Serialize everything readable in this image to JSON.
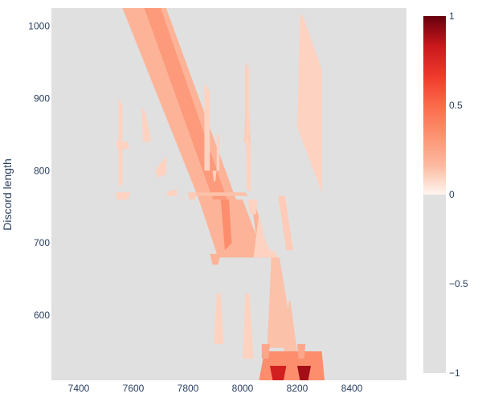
{
  "chart_data": {
    "type": "heatmap",
    "title": "",
    "xlabel": "",
    "ylabel": "Discord length",
    "xlim": [
      7300,
      8600
    ],
    "ylim": [
      510,
      1025
    ],
    "x_ticks": [
      7400,
      7600,
      7800,
      8000,
      8200,
      8400
    ],
    "y_ticks": [
      600,
      700,
      800,
      900,
      1000
    ],
    "background_value": -1,
    "colorscale": {
      "range": [
        -1,
        1
      ],
      "ticks": [
        1,
        0.5,
        0,
        -0.5,
        -1
      ],
      "tick_labels": [
        "1",
        "0.5",
        "0",
        "−0.5",
        "−1"
      ],
      "negative_color": "#e0e0e0",
      "positive_stops": [
        "#fff5f0",
        "#fcbba1",
        "#fc9272",
        "#fb6a4a",
        "#ef3b2c",
        "#cb181d",
        "#67000d"
      ]
    },
    "regions": [
      {
        "polygon": [
          [
            7560,
            1025
          ],
          [
            7720,
            1025
          ],
          [
            8015,
            720
          ],
          [
            7900,
            700
          ],
          [
            7830,
            770
          ]
        ],
        "value": 0.2
      },
      {
        "polygon": [
          [
            7640,
            1025
          ],
          [
            7700,
            1025
          ],
          [
            7980,
            720
          ],
          [
            7930,
            720
          ]
        ],
        "value": 0.3
      },
      {
        "polygon": [
          [
            7820,
            770
          ],
          [
            8010,
            770
          ],
          [
            8020,
            765
          ],
          [
            7830,
            765
          ]
        ],
        "value": 0.15
      },
      {
        "polygon": [
          [
            7840,
            760
          ],
          [
            8000,
            760
          ],
          [
            8080,
            680
          ],
          [
            7910,
            680
          ]
        ],
        "value": 0.2
      },
      {
        "polygon": [
          [
            7920,
            760
          ],
          [
            7950,
            760
          ],
          [
            7960,
            700
          ],
          [
            7935,
            690
          ]
        ],
        "value": 0.35
      },
      {
        "polygon": [
          [
            8035,
            750
          ],
          [
            8050,
            750
          ],
          [
            8100,
            680
          ],
          [
            8060,
            680
          ]
        ],
        "value": 0.2
      },
      {
        "polygon": [
          [
            7880,
            685
          ],
          [
            7920,
            685
          ],
          [
            7910,
            670
          ],
          [
            7890,
            670
          ]
        ],
        "value": 0.2
      },
      {
        "polygon": [
          [
            7545,
            900
          ],
          [
            7560,
            890
          ],
          [
            7560,
            780
          ],
          [
            7545,
            780
          ]
        ],
        "value": 0.1
      },
      {
        "polygon": [
          [
            7535,
            770
          ],
          [
            7590,
            770
          ],
          [
            7580,
            760
          ],
          [
            7540,
            760
          ]
        ],
        "value": 0.1
      },
      {
        "polygon": [
          [
            7630,
            890
          ],
          [
            7645,
            880
          ],
          [
            7665,
            840
          ],
          [
            7635,
            840
          ]
        ],
        "value": 0.1
      },
      {
        "polygon": [
          [
            7680,
            800
          ],
          [
            7720,
            820
          ],
          [
            7720,
            795
          ],
          [
            7690,
            790
          ]
        ],
        "value": 0.1
      },
      {
        "polygon": [
          [
            7720,
            770
          ],
          [
            7760,
            775
          ],
          [
            7760,
            765
          ],
          [
            7725,
            765
          ]
        ],
        "value": 0.1
      },
      {
        "polygon": [
          [
            7860,
            920
          ],
          [
            7880,
            910
          ],
          [
            7880,
            800
          ],
          [
            7860,
            800
          ]
        ],
        "value": 0.1
      },
      {
        "polygon": [
          [
            7905,
            850
          ],
          [
            7915,
            850
          ],
          [
            7915,
            800
          ],
          [
            7905,
            800
          ]
        ],
        "value": 0.1
      },
      {
        "polygon": [
          [
            7890,
            800
          ],
          [
            7905,
            800
          ],
          [
            7900,
            785
          ],
          [
            7895,
            785
          ]
        ],
        "value": 0.1
      },
      {
        "polygon": [
          [
            8010,
            950
          ],
          [
            8020,
            940
          ],
          [
            8030,
            830
          ],
          [
            8005,
            840
          ],
          [
            8010,
            875
          ]
        ],
        "value": 0.12
      },
      {
        "polygon": [
          [
            8015,
            830
          ],
          [
            8030,
            830
          ],
          [
            8030,
            770
          ],
          [
            8015,
            775
          ]
        ],
        "value": 0.1
      },
      {
        "polygon": [
          [
            8010,
            850
          ],
          [
            8030,
            835
          ],
          [
            8030,
            775
          ],
          [
            8015,
            790
          ]
        ],
        "value": 0.1
      },
      {
        "polygon": [
          [
            8015,
            950
          ],
          [
            8025,
            940
          ],
          [
            8025,
            850
          ],
          [
            8015,
            850
          ]
        ],
        "value": 0.1
      },
      {
        "polygon": [
          [
            8210,
            1015
          ],
          [
            8220,
            1015
          ],
          [
            8290,
            940
          ],
          [
            8290,
            770
          ],
          [
            8200,
            860
          ]
        ],
        "value": 0.1
      },
      {
        "polygon": [
          [
            8130,
            765
          ],
          [
            8155,
            765
          ],
          [
            8185,
            690
          ],
          [
            8160,
            690
          ]
        ],
        "value": 0.12
      },
      {
        "polygon": [
          [
            8060,
            740
          ],
          [
            8085,
            700
          ],
          [
            8120,
            680
          ],
          [
            8040,
            680
          ]
        ],
        "value": 0.1
      },
      {
        "polygon": [
          [
            8100,
            685
          ],
          [
            8115,
            690
          ],
          [
            8130,
            680
          ],
          [
            8105,
            675
          ]
        ],
        "value": 0.1
      },
      {
        "polygon": [
          [
            8010,
            630
          ],
          [
            8025,
            630
          ],
          [
            8040,
            540
          ],
          [
            8000,
            540
          ]
        ],
        "value": 0.1
      },
      {
        "polygon": [
          [
            8105,
            680
          ],
          [
            8135,
            680
          ],
          [
            8190,
            555
          ],
          [
            8090,
            555
          ]
        ],
        "value": 0.15
      },
      {
        "polygon": [
          [
            8170,
            620
          ],
          [
            8175,
            620
          ],
          [
            8200,
            550
          ],
          [
            8150,
            550
          ]
        ],
        "value": 0.15
      },
      {
        "polygon": [
          [
            8080,
            550
          ],
          [
            8290,
            550
          ],
          [
            8300,
            510
          ],
          [
            8060,
            510
          ]
        ],
        "value": 0.35
      },
      {
        "polygon": [
          [
            8100,
            530
          ],
          [
            8160,
            530
          ],
          [
            8150,
            510
          ],
          [
            8110,
            510
          ]
        ],
        "value": 0.8
      },
      {
        "polygon": [
          [
            8200,
            530
          ],
          [
            8250,
            530
          ],
          [
            8240,
            510
          ],
          [
            8210,
            510
          ]
        ],
        "value": 0.9
      },
      {
        "polygon": [
          [
            8070,
            560
          ],
          [
            8100,
            560
          ],
          [
            8095,
            540
          ],
          [
            8070,
            540
          ]
        ],
        "value": 0.25
      },
      {
        "polygon": [
          [
            8200,
            560
          ],
          [
            8230,
            560
          ],
          [
            8225,
            540
          ],
          [
            8205,
            540
          ]
        ],
        "value": 0.25
      },
      {
        "polygon": [
          [
            8020,
            760
          ],
          [
            8055,
            760
          ],
          [
            8050,
            740
          ],
          [
            8025,
            740
          ]
        ],
        "value": 0.1
      },
      {
        "polygon": [
          [
            7800,
            770
          ],
          [
            7830,
            770
          ],
          [
            7825,
            760
          ],
          [
            7805,
            760
          ]
        ],
        "value": 0.12
      },
      {
        "polygon": [
          [
            7905,
            630
          ],
          [
            7920,
            630
          ],
          [
            7930,
            560
          ],
          [
            7895,
            560
          ]
        ],
        "value": 0.1
      },
      {
        "polygon": [
          [
            7535,
            840
          ],
          [
            7580,
            840
          ],
          [
            7585,
            830
          ],
          [
            7540,
            830
          ]
        ],
        "value": 0.1
      }
    ]
  }
}
